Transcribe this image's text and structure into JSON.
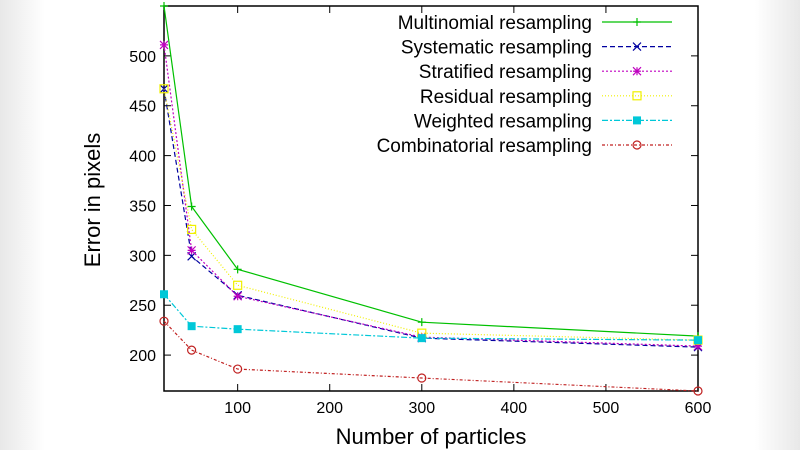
{
  "chart_data": {
    "type": "line",
    "title": "",
    "xlabel": "Number of particles",
    "ylabel": "Error in pixels",
    "xlim": [
      20,
      600
    ],
    "ylim": [
      164,
      550
    ],
    "xticks": [
      100,
      200,
      300,
      400,
      500,
      600
    ],
    "yticks": [
      200,
      250,
      300,
      350,
      400,
      450,
      500
    ],
    "grid": false,
    "legend_position": "top-right",
    "x": [
      20,
      50,
      100,
      300,
      600
    ],
    "series": [
      {
        "name": "Multinomial resampling",
        "values": [
          550,
          349,
          286,
          233,
          219
        ],
        "color": "#00c000",
        "dash": "",
        "marker": "plus"
      },
      {
        "name": "Systematic resampling",
        "values": [
          467,
          299,
          260,
          217,
          208
        ],
        "color": "#0000a0",
        "dash": "5,3",
        "marker": "cross"
      },
      {
        "name": "Stratified resampling",
        "values": [
          511,
          305,
          259,
          218,
          209
        ],
        "color": "#c000c0",
        "dash": "2,2",
        "marker": "star"
      },
      {
        "name": "Residual resampling",
        "values": [
          467,
          326,
          270,
          222,
          215
        ],
        "color": "#f0f000",
        "dash": "1,2",
        "marker": "square"
      },
      {
        "name": "Weighted resampling",
        "values": [
          261,
          229,
          226,
          217,
          215
        ],
        "color": "#00c8d8",
        "dash": "6,2,2,2",
        "marker": "filled-square"
      },
      {
        "name": "Combinatorial resampling",
        "values": [
          234,
          205,
          186,
          177,
          164
        ],
        "color": "#c02020",
        "dash": "3,2,1,2",
        "marker": "circle"
      }
    ]
  }
}
